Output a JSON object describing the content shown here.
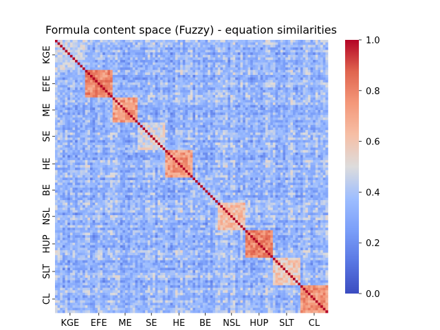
{
  "chart_data": {
    "type": "heatmap",
    "title": "Formula content space (Fuzzy) - equation similarities",
    "xlabel": "",
    "ylabel": "",
    "groups": [
      {
        "label": "KGE",
        "size": 12
      },
      {
        "label": "EFE",
        "size": 11
      },
      {
        "label": "ME",
        "size": 10
      },
      {
        "label": "SE",
        "size": 11
      },
      {
        "label": "HE",
        "size": 11
      },
      {
        "label": "BE",
        "size": 10
      },
      {
        "label": "NSL",
        "size": 11
      },
      {
        "label": "HUP",
        "size": 11
      },
      {
        "label": "SLT",
        "size": 11
      },
      {
        "label": "CL",
        "size": 11
      }
    ],
    "group_similarity": [
      {
        "group": "KGE",
        "within": 0.45
      },
      {
        "group": "EFE",
        "within": 0.78
      },
      {
        "group": "ME",
        "within": 0.72
      },
      {
        "group": "SE",
        "within": 0.5
      },
      {
        "group": "HE",
        "within": 0.74
      },
      {
        "group": "BE",
        "within": 0.38
      },
      {
        "group": "NSL",
        "within": 0.62
      },
      {
        "group": "HUP",
        "within": 0.8
      },
      {
        "group": "SLT",
        "within": 0.58
      },
      {
        "group": "CL",
        "within": 0.75
      }
    ],
    "diagonal_value": 1.0,
    "background_similarity": 0.35,
    "vmin": 0.0,
    "vmax": 1.0,
    "colormap": "coolwarm",
    "colorbar_ticks": [
      "0.0",
      "0.2",
      "0.4",
      "0.6",
      "0.8",
      "1.0"
    ]
  }
}
